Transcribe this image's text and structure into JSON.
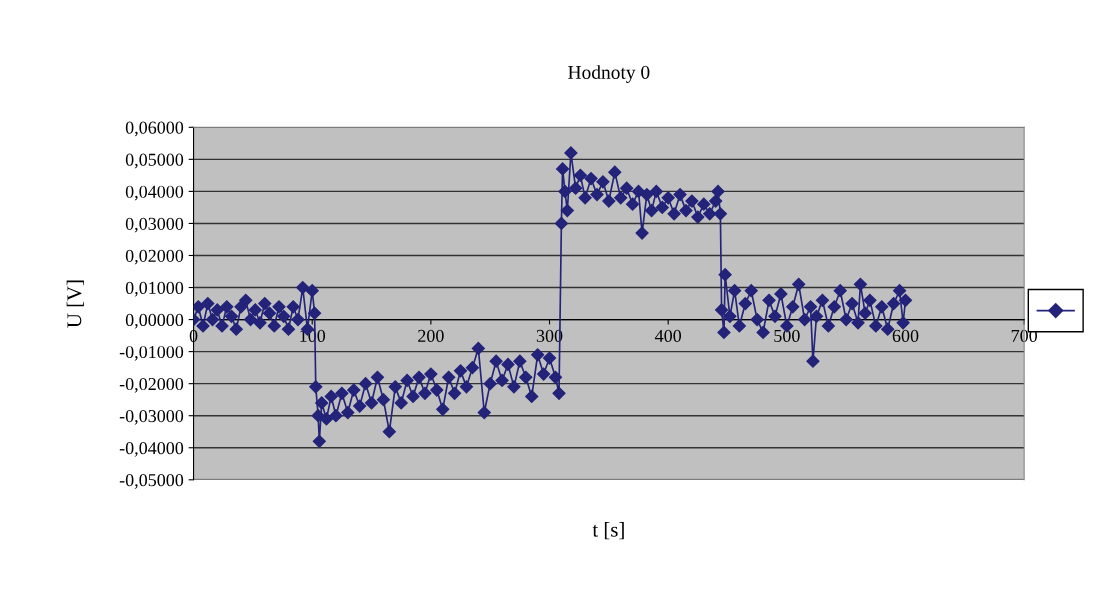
{
  "chart_data": {
    "type": "line",
    "title": "Hodnoty 0",
    "xlabel": "t [s]",
    "ylabel": "U [V]",
    "xlim": [
      0,
      700
    ],
    "xticks": [
      0,
      100,
      200,
      300,
      400,
      500,
      600,
      700
    ],
    "ylim": [
      -0.05,
      0.06
    ],
    "yticks": [
      {
        "value": 0.06,
        "label": "0,06000"
      },
      {
        "value": 0.05,
        "label": "0,05000"
      },
      {
        "value": 0.04,
        "label": "0,04000"
      },
      {
        "value": 0.03,
        "label": "0,03000"
      },
      {
        "value": 0.02,
        "label": "0,02000"
      },
      {
        "value": 0.01,
        "label": "0,01000"
      },
      {
        "value": 0,
        "label": "0,00000"
      },
      {
        "value": -0.01,
        "label": "-0,01000"
      },
      {
        "value": -0.02,
        "label": "-0,02000"
      },
      {
        "value": -0.03,
        "label": "-0,03000"
      },
      {
        "value": -0.04,
        "label": "-0,04000"
      },
      {
        "value": -0.05,
        "label": "-0,05000"
      }
    ],
    "grid": "y",
    "marker": "diamond",
    "line_style": "solid",
    "series": [
      {
        "color": "#23237a",
        "x": [
          0,
          4,
          8,
          12,
          16,
          20,
          24,
          28,
          32,
          36,
          40,
          44,
          48,
          52,
          56,
          60,
          64,
          68,
          72,
          76,
          80,
          84,
          88,
          92,
          96,
          100,
          102,
          103,
          105,
          106,
          108,
          112,
          116,
          120,
          125,
          130,
          135,
          140,
          145,
          150,
          155,
          160,
          165,
          170,
          175,
          180,
          185,
          190,
          195,
          200,
          205,
          210,
          215,
          220,
          225,
          230,
          235,
          240,
          245,
          250,
          255,
          260,
          265,
          270,
          275,
          280,
          285,
          290,
          295,
          300,
          305,
          308,
          310,
          311,
          313,
          315,
          318,
          322,
          326,
          330,
          335,
          340,
          345,
          350,
          355,
          360,
          365,
          370,
          375,
          378,
          382,
          386,
          390,
          395,
          400,
          405,
          410,
          415,
          420,
          425,
          430,
          435,
          440,
          442,
          444,
          445,
          447,
          448,
          452,
          456,
          460,
          465,
          470,
          475,
          480,
          485,
          490,
          495,
          500,
          505,
          510,
          515,
          520,
          522,
          525,
          530,
          535,
          540,
          545,
          550,
          555,
          560,
          562,
          566,
          570,
          575,
          580,
          585,
          590,
          595,
          598,
          600
        ],
        "values": [
          0.0,
          0.004,
          -0.002,
          0.005,
          0.0,
          0.003,
          -0.002,
          0.004,
          0.001,
          -0.003,
          0.004,
          0.006,
          0.0,
          0.003,
          -0.001,
          0.005,
          0.002,
          -0.002,
          0.004,
          0.001,
          -0.003,
          0.004,
          0.0,
          0.01,
          -0.003,
          0.009,
          0.002,
          -0.021,
          -0.03,
          -0.038,
          -0.026,
          -0.031,
          -0.024,
          -0.03,
          -0.023,
          -0.029,
          -0.022,
          -0.027,
          -0.02,
          -0.026,
          -0.018,
          -0.025,
          -0.035,
          -0.021,
          -0.026,
          -0.019,
          -0.024,
          -0.018,
          -0.023,
          -0.017,
          -0.022,
          -0.028,
          -0.018,
          -0.023,
          -0.016,
          -0.021,
          -0.015,
          -0.009,
          -0.029,
          -0.02,
          -0.013,
          -0.019,
          -0.014,
          -0.021,
          -0.013,
          -0.018,
          -0.024,
          -0.011,
          -0.017,
          -0.012,
          -0.018,
          -0.023,
          0.03,
          0.047,
          0.04,
          0.034,
          0.052,
          0.041,
          0.045,
          0.038,
          0.044,
          0.039,
          0.043,
          0.037,
          0.046,
          0.038,
          0.041,
          0.036,
          0.04,
          0.027,
          0.039,
          0.034,
          0.04,
          0.035,
          0.038,
          0.033,
          0.039,
          0.034,
          0.037,
          0.032,
          0.036,
          0.033,
          0.037,
          0.04,
          0.033,
          0.003,
          -0.004,
          0.014,
          0.001,
          0.009,
          -0.002,
          0.005,
          0.009,
          0.0,
          -0.004,
          0.006,
          0.001,
          0.008,
          -0.002,
          0.004,
          0.011,
          0.0,
          0.004,
          -0.013,
          0.001,
          0.006,
          -0.002,
          0.004,
          0.009,
          0.0,
          0.005,
          -0.001,
          0.011,
          0.002,
          0.006,
          -0.002,
          0.004,
          -0.003,
          0.005,
          0.009,
          -0.001,
          0.006
        ]
      }
    ]
  }
}
